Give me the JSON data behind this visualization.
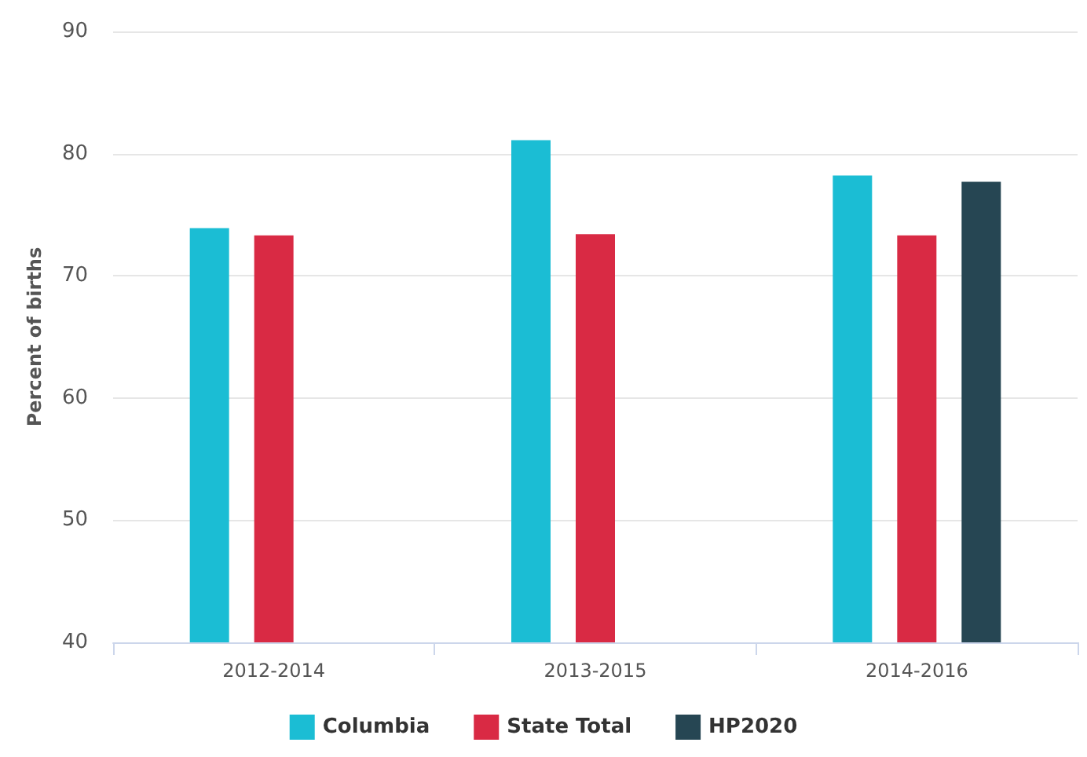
{
  "chart_data": {
    "type": "bar",
    "ylabel": "Percent of births",
    "categories": [
      "2012-2014",
      "2013-2015",
      "2014-2016"
    ],
    "series": [
      {
        "name": "Columbia",
        "color": "#1bbdd4",
        "values": [
          73.9,
          81.1,
          78.2
        ]
      },
      {
        "name": "State Total",
        "color": "#d92a44",
        "values": [
          73.3,
          73.4,
          73.3
        ]
      },
      {
        "name": "HP2020",
        "color": "#264653",
        "values": [
          null,
          null,
          77.7
        ]
      }
    ],
    "ylim": [
      40,
      90
    ],
    "yticks": [
      40,
      50,
      60,
      70,
      80,
      90
    ],
    "grid": "y",
    "legend": "bottom"
  }
}
